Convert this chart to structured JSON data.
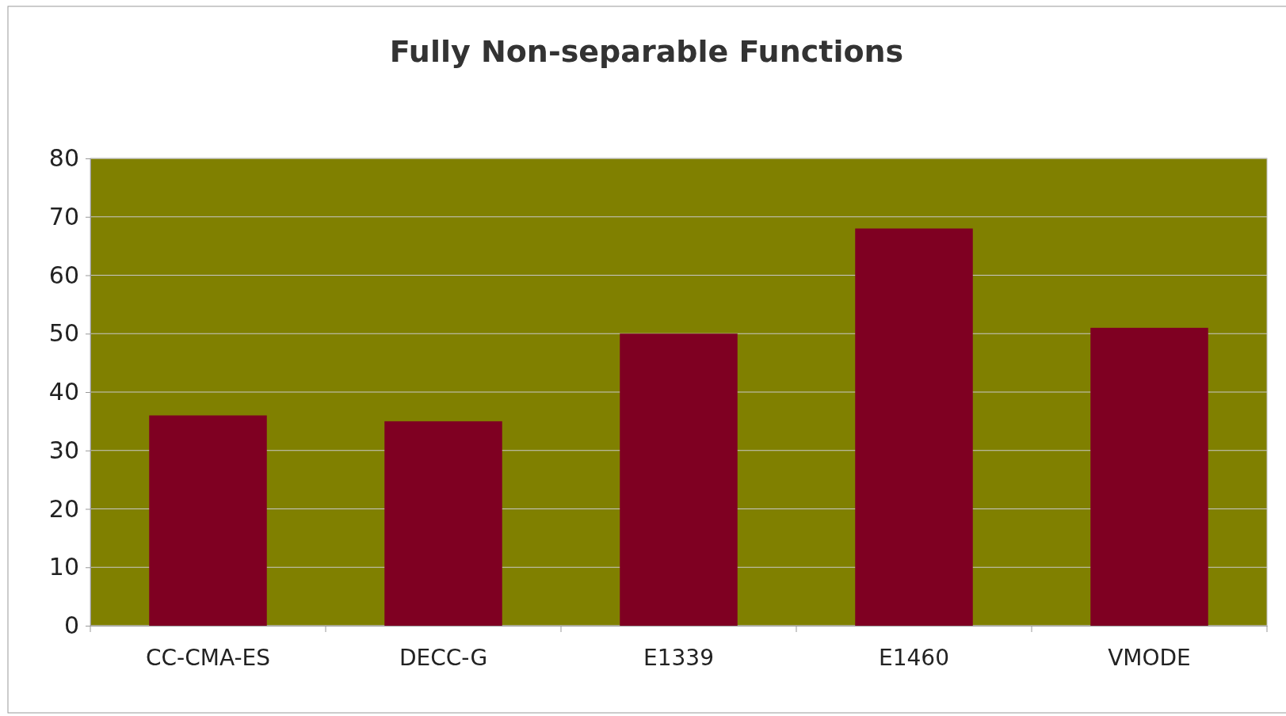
{
  "chart_data": {
    "type": "bar",
    "title": "Fully Non-separable Functions",
    "categories": [
      "CC-CMA-ES",
      "DECC-G",
      "E1339",
      "E1460",
      "VMODE"
    ],
    "values": [
      36,
      35,
      50,
      68,
      51
    ],
    "color": "#7f0022",
    "ylim": [
      0,
      80
    ],
    "yticks": [
      0,
      10,
      20,
      30,
      40,
      50,
      60,
      70,
      80
    ],
    "grid": "y"
  }
}
